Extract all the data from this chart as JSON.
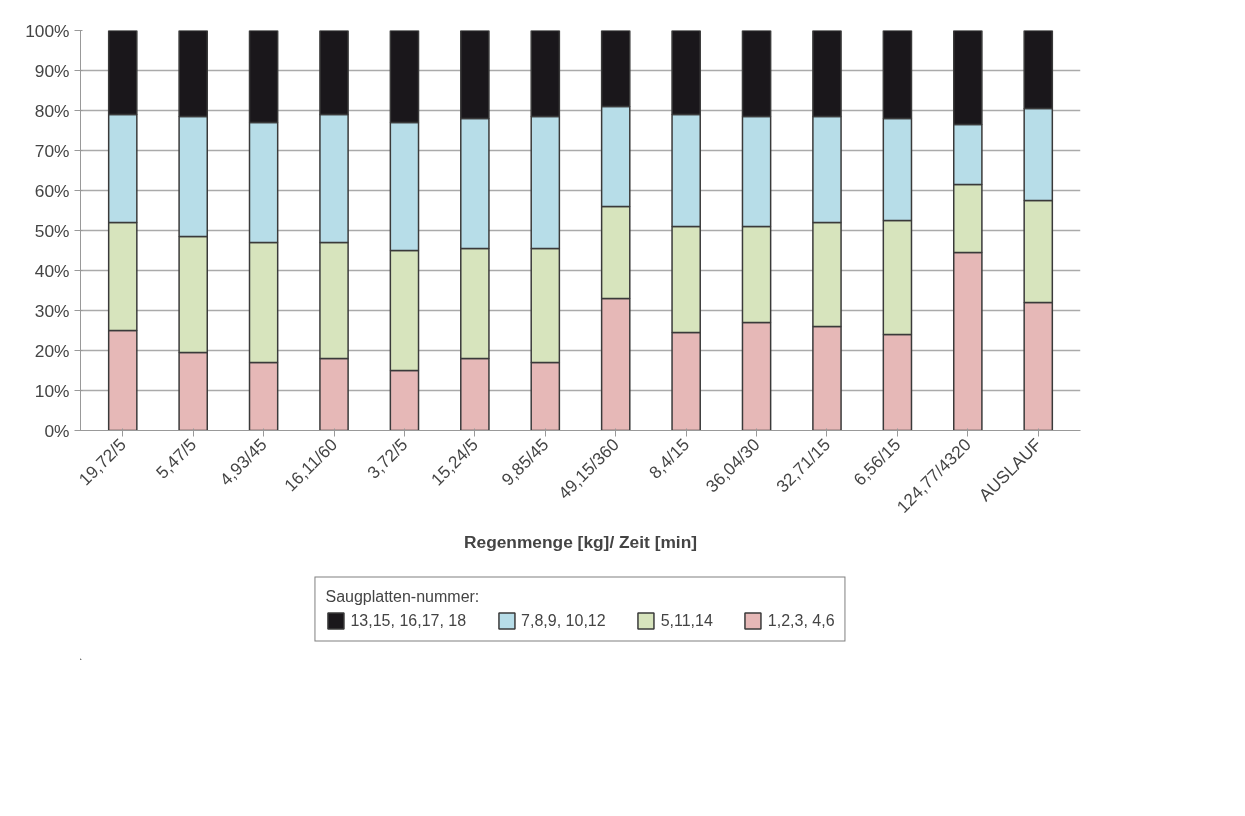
{
  "chart_data": {
    "type": "bar",
    "stacked": true,
    "xlabel": "Regenmenge [kg]/ Zeit [min]",
    "legend_title": "Saugplatten-nummer:",
    "legend": "bottom",
    "grid": "y",
    "categories": [
      "19,72/5",
      "5,47/5",
      "4,93/45",
      "16,11/60",
      "3,72/5",
      "15,24/5",
      "9,85/45",
      "49,15/360",
      "8,4/15",
      "36,04/30",
      "32,71/15",
      "6,56/15",
      "124,77/4320",
      "AUSLAUF"
    ],
    "ylim": [
      0,
      100
    ],
    "yticks": [
      {
        "value": 0,
        "label": "0%"
      },
      {
        "value": 10,
        "label": "10%"
      },
      {
        "value": 20,
        "label": "20%"
      },
      {
        "value": 30,
        "label": "30%"
      },
      {
        "value": 40,
        "label": "40%"
      },
      {
        "value": 50,
        "label": "50%"
      },
      {
        "value": 60,
        "label": "60%"
      },
      {
        "value": 70,
        "label": "70%"
      },
      {
        "value": 80,
        "label": "80%"
      },
      {
        "value": 90,
        "label": "90%"
      },
      {
        "value": 100,
        "label": "100%"
      }
    ],
    "series": [
      {
        "name": "1,2,3, 4,6",
        "color": "#e6b8b7",
        "values": [
          25,
          19.5,
          17,
          18,
          15,
          18,
          17,
          33,
          24.5,
          27,
          26,
          24,
          44.5,
          32
        ]
      },
      {
        "name": "5,11,14",
        "color": "#d7e4bd",
        "values": [
          27,
          29,
          30,
          29,
          30,
          27.5,
          28.5,
          23,
          26.5,
          24,
          26,
          28.5,
          17,
          25.5
        ]
      },
      {
        "name": "7,8,9, 10,12",
        "color": "#b7dde8",
        "values": [
          27,
          30,
          30,
          32,
          32,
          32.5,
          33,
          25,
          28,
          27.5,
          26.5,
          25.5,
          15,
          23
        ]
      },
      {
        "name": "13,15, 16,17, 18",
        "color": "#1a171b",
        "values": [
          21,
          21.5,
          23,
          21,
          23,
          22,
          21.5,
          19,
          21,
          21.5,
          21.5,
          22,
          23.5,
          19.5
        ]
      }
    ]
  }
}
